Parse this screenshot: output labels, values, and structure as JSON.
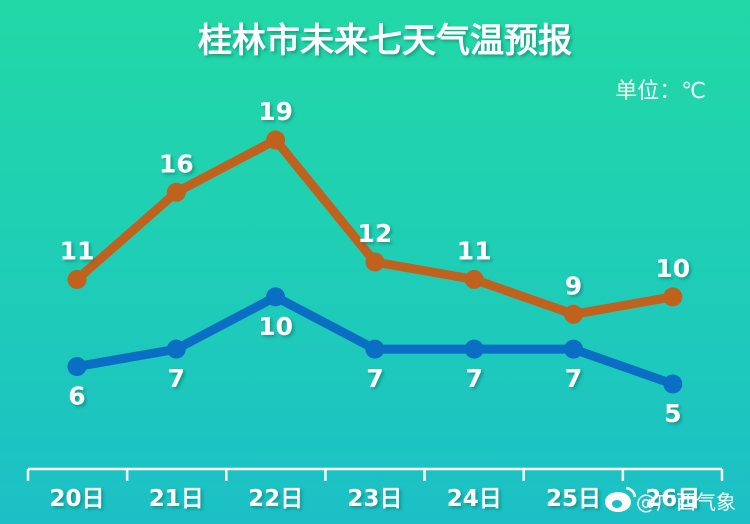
{
  "chart_data": {
    "type": "line",
    "title": "桂林市未来七天气温预报",
    "unit_label": "单位：℃",
    "categories": [
      "20日",
      "21日",
      "22日",
      "23日",
      "24日",
      "25日",
      "26日"
    ],
    "series": [
      {
        "values": [
          11,
          16,
          19,
          12,
          11,
          9,
          10
        ],
        "color": "#c0621e",
        "label_position": "above"
      },
      {
        "values": [
          6,
          7,
          10,
          7,
          7,
          7,
          5
        ],
        "color": "#0a6fc4",
        "label_position": "below"
      }
    ],
    "ylim": [
      5,
      19
    ],
    "grid": false,
    "legend": "none",
    "axis_color": "#ffffff"
  },
  "watermark": {
    "text": "@广西气象",
    "icon": "weibo-icon"
  }
}
